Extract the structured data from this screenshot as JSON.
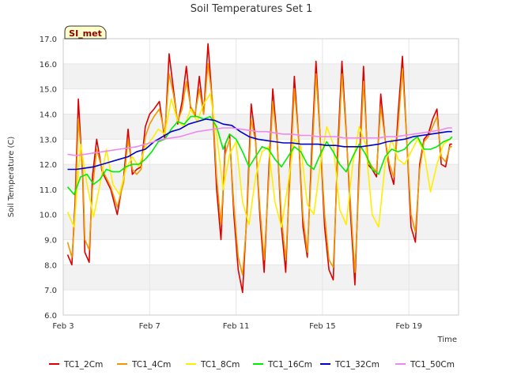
{
  "chart_data": {
    "type": "line",
    "title": "Soil Temperatures Set 1",
    "xlabel": "Time",
    "ylabel": "Soil Temperature (C)",
    "badge": "SI_met",
    "ylim": [
      6.0,
      17.0
    ],
    "xlim_days": [
      3,
      21.3
    ],
    "yticks": [
      "6.0",
      "7.0",
      "8.0",
      "9.0",
      "10.0",
      "11.0",
      "12.0",
      "13.0",
      "14.0",
      "15.0",
      "16.0",
      "17.0"
    ],
    "xticks": [
      {
        "day": 3,
        "label": "Feb 3"
      },
      {
        "day": 7,
        "label": "Feb 7"
      },
      {
        "day": 11,
        "label": "Feb 11"
      },
      {
        "day": 15,
        "label": "Feb 15"
      },
      {
        "day": 19,
        "label": "Feb 19"
      }
    ],
    "grid": true,
    "legend_position": "bottom",
    "series": [
      {
        "name": "TC1_2Cm",
        "color": "#dd0000",
        "x": [
          3.2,
          3.4,
          3.55,
          3.7,
          3.9,
          4.0,
          4.2,
          4.35,
          4.55,
          4.8,
          5.2,
          5.5,
          5.8,
          6.0,
          6.2,
          6.4,
          6.6,
          6.8,
          7.0,
          7.2,
          7.45,
          7.7,
          7.9,
          8.1,
          8.3,
          8.5,
          8.7,
          8.9,
          9.1,
          9.3,
          9.5,
          9.7,
          9.9,
          10.1,
          10.3,
          10.5,
          10.7,
          10.9,
          11.1,
          11.3,
          11.5,
          11.7,
          11.9,
          12.1,
          12.3,
          12.5,
          12.7,
          12.9,
          13.1,
          13.3,
          13.5,
          13.7,
          13.9,
          14.1,
          14.3,
          14.5,
          14.7,
          14.9,
          15.1,
          15.3,
          15.5,
          15.7,
          15.9,
          16.1,
          16.3,
          16.5,
          16.7,
          16.9,
          17.1,
          17.3,
          17.5,
          17.7,
          17.9,
          18.1,
          18.3,
          18.5,
          18.7,
          18.9,
          19.1,
          19.3,
          19.5,
          19.7,
          19.9,
          20.1,
          20.3,
          20.5,
          20.7,
          20.9,
          21.0
        ],
        "y": [
          8.4,
          8.0,
          10.5,
          14.6,
          11.5,
          8.5,
          8.1,
          11.5,
          13.0,
          11.7,
          11.0,
          10.0,
          11.5,
          13.4,
          11.6,
          11.8,
          11.9,
          13.5,
          14.0,
          14.2,
          14.5,
          13.0,
          16.4,
          15.0,
          13.6,
          14.5,
          15.9,
          14.2,
          13.9,
          15.5,
          14.0,
          16.8,
          14.5,
          11.0,
          9.0,
          12.8,
          13.2,
          10.0,
          7.8,
          6.9,
          10.0,
          14.4,
          13.0,
          10.0,
          7.7,
          11.5,
          15.0,
          13.0,
          9.5,
          7.7,
          12.0,
          15.5,
          13.0,
          9.5,
          8.3,
          12.5,
          16.1,
          13.0,
          9.5,
          7.8,
          7.4,
          12.5,
          16.1,
          13.3,
          10.0,
          7.2,
          12.0,
          15.9,
          12.0,
          11.8,
          11.5,
          14.8,
          13.0,
          11.8,
          11.2,
          14.0,
          16.3,
          13.0,
          9.5,
          8.9,
          12.0,
          13.0,
          13.2,
          13.8,
          14.2,
          12.0,
          11.9,
          12.8,
          12.8
        ]
      },
      {
        "name": "TC1_4Cm",
        "color": "#ee9900",
        "x": [
          3.2,
          3.4,
          3.55,
          3.7,
          3.9,
          4.0,
          4.2,
          4.35,
          4.55,
          4.8,
          5.2,
          5.5,
          5.8,
          6.0,
          6.2,
          6.4,
          6.6,
          6.8,
          7.0,
          7.2,
          7.45,
          7.7,
          7.9,
          8.1,
          8.3,
          8.5,
          8.7,
          8.9,
          9.1,
          9.3,
          9.5,
          9.7,
          9.9,
          10.1,
          10.3,
          10.5,
          10.7,
          10.9,
          11.1,
          11.3,
          11.5,
          11.7,
          11.9,
          12.1,
          12.3,
          12.5,
          12.7,
          12.9,
          13.1,
          13.3,
          13.5,
          13.7,
          13.9,
          14.1,
          14.3,
          14.5,
          14.7,
          14.9,
          15.1,
          15.3,
          15.5,
          15.7,
          15.9,
          16.1,
          16.3,
          16.5,
          16.7,
          16.9,
          17.1,
          17.3,
          17.5,
          17.7,
          17.9,
          18.1,
          18.3,
          18.5,
          18.7,
          18.9,
          19.1,
          19.3,
          19.5,
          19.7,
          19.9,
          20.1,
          20.3,
          20.5,
          20.7,
          20.9,
          21.0
        ],
        "y": [
          8.9,
          8.3,
          10.0,
          13.8,
          11.8,
          9.0,
          8.6,
          11.0,
          12.6,
          11.8,
          11.1,
          10.3,
          11.3,
          13.0,
          11.8,
          11.6,
          11.8,
          13.1,
          13.6,
          13.9,
          14.2,
          13.2,
          15.6,
          14.8,
          13.7,
          14.2,
          15.3,
          14.3,
          14.0,
          15.0,
          14.0,
          16.0,
          14.6,
          11.5,
          9.6,
          12.4,
          13.0,
          10.4,
          8.3,
          7.6,
          9.8,
          13.8,
          12.9,
          10.3,
          8.2,
          11.2,
          14.5,
          12.9,
          9.9,
          8.2,
          11.5,
          15.0,
          13.0,
          9.9,
          8.5,
          12.0,
          15.6,
          13.0,
          10.0,
          8.2,
          7.9,
          12.0,
          15.6,
          13.2,
          10.4,
          7.7,
          11.5,
          15.3,
          12.2,
          11.9,
          11.7,
          14.3,
          13.0,
          12.0,
          11.5,
          13.5,
          15.8,
          13.0,
          10.0,
          9.3,
          11.8,
          12.9,
          13.1,
          13.5,
          13.9,
          12.3,
          12.1,
          12.7,
          12.7
        ]
      },
      {
        "name": "TC1_8Cm",
        "color": "#ffee00",
        "x": [
          3.2,
          3.5,
          3.8,
          4.1,
          4.4,
          4.7,
          5.0,
          5.3,
          5.6,
          5.9,
          6.2,
          6.5,
          6.8,
          7.1,
          7.4,
          7.7,
          8.0,
          8.3,
          8.6,
          8.9,
          9.2,
          9.5,
          9.8,
          10.1,
          10.4,
          10.7,
          11.0,
          11.3,
          11.6,
          11.9,
          12.2,
          12.5,
          12.8,
          13.1,
          13.4,
          13.7,
          14.0,
          14.3,
          14.6,
          14.9,
          15.2,
          15.5,
          15.8,
          16.1,
          16.4,
          16.7,
          17.0,
          17.3,
          17.6,
          17.9,
          18.2,
          18.5,
          18.8,
          19.1,
          19.4,
          19.7,
          20.0,
          20.3,
          20.6,
          20.9,
          21.0
        ],
        "y": [
          10.1,
          9.5,
          12.8,
          11.2,
          9.9,
          11.2,
          12.6,
          11.2,
          10.8,
          11.8,
          12.3,
          11.9,
          12.7,
          13.0,
          13.4,
          13.2,
          14.6,
          13.7,
          13.5,
          14.2,
          13.7,
          14.4,
          14.8,
          13.2,
          11.0,
          12.4,
          12.9,
          10.5,
          9.6,
          11.5,
          12.5,
          12.7,
          10.5,
          9.5,
          11.2,
          13.0,
          12.7,
          10.4,
          10.0,
          12.0,
          13.5,
          12.8,
          10.2,
          9.6,
          12.0,
          13.5,
          12.8,
          10.0,
          9.5,
          12.0,
          13.0,
          12.2,
          12.0,
          12.5,
          13.0,
          12.5,
          10.9,
          12.0,
          12.8,
          13.0,
          13.1
        ]
      },
      {
        "name": "TC1_16Cm",
        "color": "#00ee00",
        "x": [
          3.2,
          3.5,
          3.8,
          4.1,
          4.4,
          4.7,
          5.0,
          5.3,
          5.6,
          5.9,
          6.2,
          6.5,
          6.8,
          7.1,
          7.4,
          7.7,
          8.0,
          8.3,
          8.6,
          8.9,
          9.2,
          9.5,
          9.8,
          10.1,
          10.4,
          10.7,
          11.0,
          11.3,
          11.6,
          11.9,
          12.2,
          12.5,
          12.8,
          13.1,
          13.4,
          13.7,
          14.0,
          14.3,
          14.6,
          14.9,
          15.2,
          15.5,
          15.8,
          16.1,
          16.4,
          16.7,
          17.0,
          17.3,
          17.6,
          17.9,
          18.2,
          18.5,
          18.8,
          19.1,
          19.4,
          19.7,
          20.0,
          20.3,
          20.6,
          20.9,
          21.0
        ],
        "y": [
          11.1,
          10.8,
          11.5,
          11.6,
          11.2,
          11.4,
          11.8,
          11.7,
          11.7,
          11.9,
          12.0,
          12.0,
          12.2,
          12.5,
          12.9,
          13.0,
          13.4,
          13.7,
          13.6,
          13.9,
          13.9,
          13.8,
          13.9,
          13.5,
          12.6,
          13.2,
          13.0,
          12.5,
          11.9,
          12.3,
          12.7,
          12.6,
          12.2,
          11.9,
          12.3,
          12.7,
          12.5,
          12.0,
          11.8,
          12.4,
          12.9,
          12.5,
          12.0,
          11.7,
          12.3,
          12.8,
          12.4,
          11.8,
          11.6,
          12.3,
          12.6,
          12.5,
          12.6,
          12.9,
          13.1,
          12.6,
          12.6,
          12.7,
          12.9,
          13.0,
          13.1
        ]
      },
      {
        "name": "TC1_32Cm",
        "color": "#0000cc",
        "x": [
          3.2,
          3.6,
          4.0,
          4.4,
          4.8,
          5.2,
          5.6,
          6.0,
          6.4,
          6.8,
          7.2,
          7.6,
          8.0,
          8.4,
          8.8,
          9.2,
          9.6,
          10.0,
          10.4,
          10.8,
          11.2,
          11.6,
          12.0,
          12.4,
          12.8,
          13.2,
          13.6,
          14.0,
          14.4,
          14.8,
          15.2,
          15.6,
          16.0,
          16.4,
          16.8,
          17.2,
          17.6,
          18.0,
          18.4,
          18.8,
          19.2,
          19.6,
          20.0,
          20.4,
          20.8,
          21.0
        ],
        "y": [
          11.8,
          11.8,
          11.85,
          11.9,
          12.0,
          12.1,
          12.2,
          12.3,
          12.5,
          12.6,
          12.9,
          13.1,
          13.3,
          13.4,
          13.6,
          13.7,
          13.8,
          13.75,
          13.6,
          13.55,
          13.3,
          13.1,
          13.0,
          12.95,
          12.9,
          12.85,
          12.85,
          12.8,
          12.8,
          12.8,
          12.75,
          12.75,
          12.7,
          12.7,
          12.7,
          12.75,
          12.8,
          12.9,
          12.95,
          13.0,
          13.1,
          13.15,
          13.2,
          13.25,
          13.3,
          13.3
        ]
      },
      {
        "name": "TC1_50Cm",
        "color": "#ee88ee",
        "x": [
          3.2,
          3.6,
          4.0,
          4.4,
          4.8,
          5.2,
          5.6,
          6.0,
          6.4,
          6.8,
          7.2,
          7.6,
          8.0,
          8.4,
          8.8,
          9.2,
          9.6,
          10.0,
          10.4,
          10.8,
          11.2,
          11.6,
          12.0,
          12.4,
          12.8,
          13.2,
          13.6,
          14.0,
          14.4,
          14.8,
          15.2,
          15.6,
          16.0,
          16.4,
          16.8,
          17.2,
          17.6,
          18.0,
          18.4,
          18.8,
          19.2,
          19.6,
          20.0,
          20.4,
          20.8,
          21.0
        ],
        "y": [
          12.4,
          12.35,
          12.4,
          12.45,
          12.5,
          12.55,
          12.6,
          12.65,
          12.7,
          12.8,
          12.9,
          13.0,
          13.05,
          13.1,
          13.2,
          13.3,
          13.35,
          13.4,
          13.45,
          13.45,
          13.4,
          13.35,
          13.3,
          13.3,
          13.25,
          13.2,
          13.2,
          13.15,
          13.15,
          13.1,
          13.1,
          13.1,
          13.05,
          13.05,
          13.05,
          13.05,
          13.05,
          13.1,
          13.1,
          13.15,
          13.2,
          13.25,
          13.3,
          13.35,
          13.45,
          13.45
        ]
      }
    ]
  }
}
